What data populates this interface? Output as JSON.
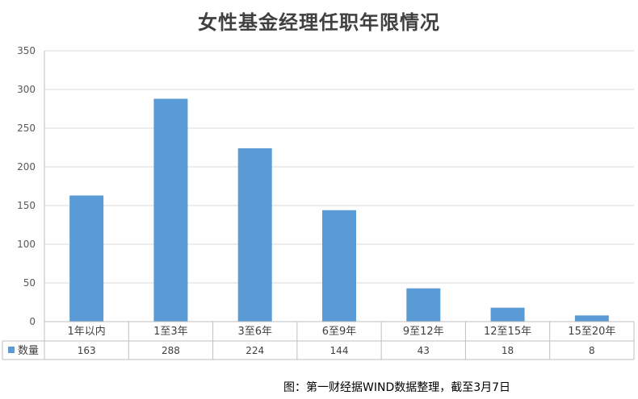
{
  "chart_data": {
    "type": "bar",
    "title": "女性基金经理任职年限情况",
    "categories": [
      "1年以内",
      "1至3年",
      "3至6年",
      "6至9年",
      "9至12年",
      "12至15年",
      "15至20年"
    ],
    "series": [
      {
        "name": "数量",
        "values": [
          163,
          288,
          224,
          144,
          43,
          18,
          8
        ]
      }
    ],
    "ylim": [
      0,
      350
    ],
    "yticks": [
      0,
      50,
      100,
      150,
      200,
      250,
      300,
      350
    ],
    "grid": true,
    "legend": "data-table",
    "data_table": true,
    "colors": {
      "bar": "#5b9bd5",
      "grid": "#d9d9d9",
      "border": "#bfbfbf"
    },
    "caption": "图：第一财经据WIND数据整理，截至3月7日"
  }
}
